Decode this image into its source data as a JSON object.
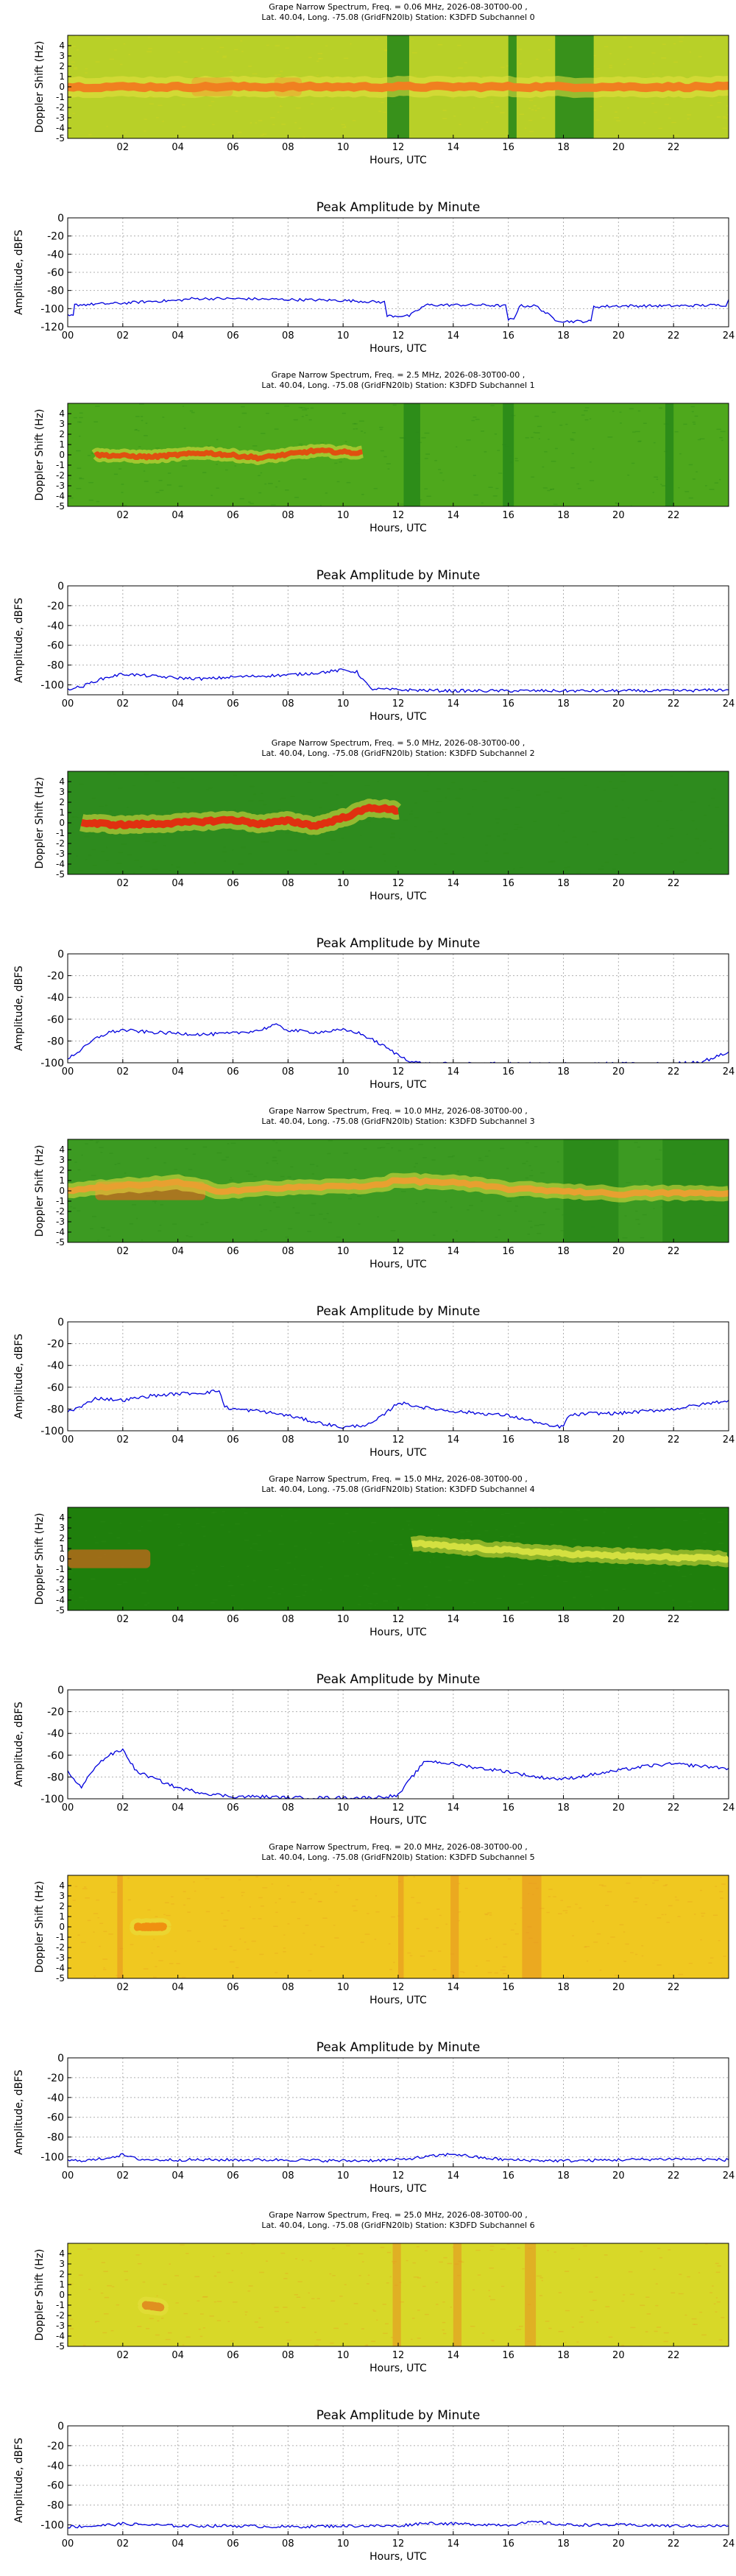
{
  "labels": {
    "spec_ylabel": "Doppler Shift (Hz)",
    "amp_ylabel": "Amplitude, dBFS",
    "xlabel": "Hours, UTC",
    "amp_title": "Peak Amplitude by Minute"
  },
  "spec_yticks": [
    "4",
    "3",
    "2",
    "1",
    "0",
    "-1",
    "-2",
    "-3",
    "-4",
    "-5"
  ],
  "spec_xticks": [
    "02",
    "04",
    "06",
    "08",
    "10",
    "12",
    "14",
    "16",
    "18",
    "20",
    "22"
  ],
  "amp_xticks": [
    "00",
    "02",
    "04",
    "06",
    "08",
    "10",
    "12",
    "14",
    "16",
    "18",
    "20",
    "22",
    "24"
  ],
  "colors": {
    "spec_green": "#2e8b1e",
    "spec_yellow_green": "#aacc22",
    "spec_yellow": "#e8d830",
    "spec_orange": "#f08020",
    "spec_red": "#dd2a10",
    "amp_line": "#0000dd",
    "grid": "#b0b0b0"
  },
  "chart_data": [
    {
      "index": 0,
      "type": "heatmap",
      "title_line1": "Grape Narrow Spectrum, Freq. = 0.06 MHz, 2026-08-30T00-00 ,",
      "title_line2": "Lat.  40.04, Long. -75.08 (GridFN20lb) Station: K3DFD Subchannel 0",
      "xlabel": "Hours, UTC",
      "ylabel": "Doppler Shift (Hz)",
      "xlim": [
        0,
        24
      ],
      "ylim": [
        -5,
        5
      ],
      "background": "#b8d028",
      "bands": [
        [
          11.6,
          12.4
        ],
        [
          16.0,
          16.3
        ],
        [
          17.7,
          19.1
        ]
      ],
      "trace": {
        "freq": [
          [
            0,
            0
          ],
          [
            24,
            0
          ]
        ],
        "color": "#f08020",
        "width_hz": 0.8,
        "hours": [
          0,
          24
        ]
      },
      "hot_zones": [
        [
          4.5,
          6.0
        ],
        [
          7.5,
          8.5
        ]
      ]
    },
    {
      "index": 0,
      "type": "line",
      "title": "Peak Amplitude by Minute",
      "xlabel": "Hours, UTC",
      "ylabel": "Amplitude, dBFS",
      "ylim": [
        -120,
        0
      ],
      "yticks": [
        0,
        -20,
        -40,
        -60,
        -80,
        -100,
        -120
      ],
      "x": [
        0,
        0.2,
        0.25,
        1,
        2,
        3,
        4,
        4.5,
        6,
        8,
        10,
        11.5,
        11.6,
        12.4,
        13,
        14,
        15,
        15.9,
        16.0,
        16.2,
        16.4,
        17,
        17.7,
        18.0,
        19.0,
        19.1,
        20,
        22,
        23.9,
        24
      ],
      "y": [
        -108,
        -108,
        -96,
        -95,
        -94,
        -92,
        -91,
        -89,
        -89,
        -90,
        -91,
        -93,
        -108,
        -108,
        -96,
        -96,
        -96,
        -97,
        -112,
        -112,
        -97,
        -97,
        -112,
        -114,
        -114,
        -98,
        -97,
        -97,
        -96,
        -90
      ]
    },
    {
      "index": 1,
      "type": "heatmap",
      "title_line1": "Grape Narrow Spectrum, Freq. = 2.5 MHz, 2026-08-30T00-00 ,",
      "title_line2": "Lat.  40.04, Long. -75.08 (GridFN20lb) Station: K3DFD Subchannel 1",
      "xlabel": "Hours, UTC",
      "ylabel": "Doppler Shift (Hz)",
      "xlim": [
        0,
        24
      ],
      "ylim": [
        -5,
        5
      ],
      "background": "#4ea81c",
      "bands": [
        [
          12.2,
          12.8
        ],
        [
          15.8,
          16.2
        ],
        [
          21.7,
          22.0
        ]
      ],
      "trace": {
        "freq": [
          [
            1,
            0
          ],
          [
            3,
            -0.2
          ],
          [
            5,
            0.2
          ],
          [
            7,
            -0.3
          ],
          [
            9,
            0.4
          ],
          [
            10.5,
            0.2
          ]
        ],
        "color": "#e05010",
        "width_hz": 0.5,
        "hours": [
          1,
          10.7
        ]
      },
      "hot_zones": []
    },
    {
      "index": 1,
      "type": "line",
      "title": "Peak Amplitude by Minute",
      "xlabel": "Hours, UTC",
      "ylabel": "Amplitude, dBFS",
      "ylim": [
        -110,
        0
      ],
      "yticks": [
        0,
        -20,
        -40,
        -60,
        -80,
        -100
      ],
      "x": [
        0,
        0.5,
        1,
        1.5,
        2,
        3,
        4,
        5,
        6,
        7,
        8,
        9,
        10,
        10.5,
        11,
        12,
        14,
        16,
        18,
        20,
        22,
        24
      ],
      "y": [
        -104,
        -102,
        -96,
        -92,
        -89,
        -91,
        -93,
        -94,
        -92,
        -91,
        -90,
        -88,
        -85,
        -87,
        -104,
        -105,
        -106,
        -106,
        -106,
        -106,
        -106,
        -105
      ]
    },
    {
      "index": 2,
      "type": "heatmap",
      "title_line1": "Grape Narrow Spectrum, Freq. = 5.0 MHz, 2026-08-30T00-00 ,",
      "title_line2": "Lat.  40.04, Long. -75.08 (GridFN20lb) Station: K3DFD Subchannel 2",
      "xlabel": "Hours, UTC",
      "ylabel": "Doppler Shift (Hz)",
      "xlim": [
        0,
        24
      ],
      "ylim": [
        -5,
        5
      ],
      "background": "#2e8b1e",
      "bands": [],
      "trace": {
        "freq": [
          [
            0.5,
            0
          ],
          [
            2,
            -0.2
          ],
          [
            4,
            0
          ],
          [
            6,
            0.3
          ],
          [
            7,
            -0.1
          ],
          [
            8,
            0.2
          ],
          [
            9,
            -0.3
          ],
          [
            10,
            0.5
          ],
          [
            11,
            1.5
          ],
          [
            12,
            1.2
          ]
        ],
        "color": "#e03010",
        "width_hz": 0.7,
        "hours": [
          0.5,
          12
        ]
      },
      "hot_zones": []
    },
    {
      "index": 2,
      "type": "line",
      "title": "Peak Amplitude by Minute",
      "xlabel": "Hours, UTC",
      "ylabel": "Amplitude, dBFS",
      "ylim": [
        -100,
        0
      ],
      "yticks": [
        0,
        -20,
        -40,
        -60,
        -80,
        -100
      ],
      "x": [
        0,
        0.5,
        1,
        1.5,
        2,
        3,
        4,
        5,
        6,
        7,
        7.5,
        8,
        9,
        10,
        10.5,
        11,
        11.5,
        12,
        12.5,
        13,
        14,
        16,
        18,
        20,
        22,
        23,
        23.5,
        24
      ],
      "y": [
        -96,
        -88,
        -78,
        -72,
        -70,
        -72,
        -73,
        -74,
        -73,
        -70,
        -65,
        -70,
        -72,
        -70,
        -72,
        -78,
        -85,
        -93,
        -99,
        -101,
        -101,
        -101,
        -101,
        -101,
        -101,
        -99,
        -95,
        -90
      ]
    },
    {
      "index": 3,
      "type": "heatmap",
      "title_line1": "Grape Narrow Spectrum, Freq. = 10.0 MHz, 2026-08-30T00-00 ,",
      "title_line2": "Lat.  40.04, Long. -75.08 (GridFN20lb) Station: K3DFD Subchannel 3",
      "xlabel": "Hours, UTC",
      "ylabel": "Doppler Shift (Hz)",
      "xlim": [
        0,
        24
      ],
      "ylim": [
        -5,
        5
      ],
      "background": "#3c9a22",
      "bands": [
        [
          18.0,
          20.0
        ],
        [
          21.6,
          24.0
        ]
      ],
      "trace": {
        "freq": [
          [
            0,
            0
          ],
          [
            2,
            0.5
          ],
          [
            4,
            0.8
          ],
          [
            5.5,
            0
          ],
          [
            8,
            0.3
          ],
          [
            11,
            0.5
          ],
          [
            12,
            1.0
          ],
          [
            14,
            0.8
          ],
          [
            16,
            0.2
          ],
          [
            18,
            0
          ],
          [
            20,
            -0.3
          ],
          [
            22,
            -0.2
          ],
          [
            24,
            -0.3
          ]
        ],
        "color": "#e8a030",
        "width_hz": 0.6,
        "hours": [
          0,
          24
        ]
      },
      "hot_zones": [
        [
          1,
          5
        ]
      ]
    },
    {
      "index": 3,
      "type": "line",
      "title": "Peak Amplitude by Minute",
      "xlabel": "Hours, UTC",
      "ylabel": "Amplitude, dBFS",
      "ylim": [
        -100,
        0
      ],
      "yticks": [
        0,
        -20,
        -40,
        -60,
        -80,
        -100
      ],
      "x": [
        0,
        0.5,
        1,
        2,
        3,
        4,
        5,
        5.5,
        5.7,
        6,
        7,
        8,
        9,
        10,
        11,
        11.5,
        12,
        13,
        14,
        15,
        16,
        17,
        17.5,
        18,
        18.2,
        19,
        20,
        21,
        22,
        23,
        24
      ],
      "y": [
        -82,
        -78,
        -70,
        -72,
        -68,
        -66,
        -65,
        -63,
        -78,
        -80,
        -82,
        -86,
        -92,
        -97,
        -94,
        -85,
        -74,
        -79,
        -82,
        -84,
        -86,
        -92,
        -96,
        -96,
        -86,
        -84,
        -84,
        -82,
        -80,
        -76,
        -72
      ]
    },
    {
      "index": 4,
      "type": "heatmap",
      "title_line1": "Grape Narrow Spectrum, Freq. = 15.0 MHz, 2026-08-30T00-00 ,",
      "title_line2": "Lat.  40.04, Long. -75.08 (GridFN20lb) Station: K3DFD Subchannel 4",
      "xlabel": "Hours, UTC",
      "ylabel": "Doppler Shift (Hz)",
      "xlim": [
        0,
        24
      ],
      "ylim": [
        -5,
        5
      ],
      "background": "#1f7f0c",
      "bands": [],
      "trace": {
        "freq": [
          [
            12.5,
            1.5
          ],
          [
            15,
            1.0
          ],
          [
            18,
            0.5
          ],
          [
            21,
            0.2
          ],
          [
            24,
            0
          ]
        ],
        "color": "#d4e040",
        "width_hz": 0.6,
        "hours": [
          12.5,
          24
        ]
      },
      "hot_zones": [
        [
          0,
          3
        ]
      ]
    },
    {
      "index": 4,
      "type": "line",
      "title": "Peak Amplitude by Minute",
      "xlabel": "Hours, UTC",
      "ylabel": "Amplitude, dBFS",
      "ylim": [
        -100,
        0
      ],
      "yticks": [
        0,
        -20,
        -40,
        -60,
        -80,
        -100
      ],
      "x": [
        0,
        0.5,
        1,
        1.5,
        2,
        2.5,
        3,
        4,
        5,
        6,
        7,
        8,
        9,
        10,
        11,
        12,
        12.5,
        13,
        14,
        15,
        16,
        17,
        18,
        19,
        20,
        21,
        22,
        23,
        24
      ],
      "y": [
        -75,
        -90,
        -70,
        -60,
        -55,
        -75,
        -80,
        -90,
        -95,
        -98,
        -98,
        -99,
        -99,
        -99,
        -99,
        -97,
        -80,
        -65,
        -68,
        -72,
        -75,
        -80,
        -82,
        -78,
        -74,
        -70,
        -68,
        -70,
        -72
      ]
    },
    {
      "index": 5,
      "type": "heatmap",
      "title_line1": "Grape Narrow Spectrum, Freq. = 20.0 MHz, 2026-08-30T00-00 ,",
      "title_line2": "Lat.  40.04, Long. -75.08 (GridFN20lb) Station: K3DFD Subchannel 5",
      "xlabel": "Hours, UTC",
      "ylabel": "Doppler Shift (Hz)",
      "xlim": [
        0,
        24
      ],
      "ylim": [
        -5,
        5
      ],
      "background": "#f0c820",
      "bands": [
        [
          1.8,
          2.0
        ],
        [
          12.0,
          12.2
        ],
        [
          13.9,
          14.2
        ],
        [
          16.5,
          17.2
        ]
      ],
      "trace": {
        "freq": [
          [
            2.5,
            0
          ],
          [
            3.5,
            0
          ]
        ],
        "color": "#f09010",
        "width_hz": 0.6,
        "hours": [
          2.5,
          3.5
        ]
      },
      "hot_zones": []
    },
    {
      "index": 5,
      "type": "line",
      "title": "Peak Amplitude by Minute",
      "xlabel": "Hours, UTC",
      "ylabel": "Amplitude, dBFS",
      "ylim": [
        -110,
        0
      ],
      "yticks": [
        0,
        -20,
        -40,
        -60,
        -80,
        -100
      ],
      "x": [
        0,
        1,
        2,
        2.5,
        3,
        4,
        6,
        8,
        10,
        12,
        14,
        15,
        16,
        18,
        20,
        22,
        24
      ],
      "y": [
        -104,
        -103,
        -98,
        -102,
        -103,
        -103,
        -103,
        -103,
        -104,
        -103,
        -97,
        -101,
        -103,
        -104,
        -103,
        -102,
        -103
      ]
    },
    {
      "index": 6,
      "type": "heatmap",
      "title_line1": "Grape Narrow Spectrum, Freq. = 25.0 MHz, 2026-08-30T00-00 ,",
      "title_line2": "Lat.  40.04, Long. -75.08 (GridFN20lb) Station: K3DFD Subchannel 6",
      "xlabel": "Hours, UTC",
      "ylabel": "Doppler Shift (Hz)",
      "xlim": [
        0,
        24
      ],
      "ylim": [
        -5,
        5
      ],
      "background": "#d8d828",
      "bands": [
        [
          11.8,
          12.1
        ],
        [
          14.0,
          14.3
        ],
        [
          16.6,
          17.0
        ]
      ],
      "trace": {
        "freq": [
          [
            2.8,
            -1.0
          ],
          [
            3.4,
            -1.2
          ]
        ],
        "color": "#e09020",
        "width_hz": 0.6,
        "hours": [
          2.8,
          3.4
        ]
      },
      "hot_zones": []
    },
    {
      "index": 6,
      "type": "line",
      "title": "Peak Amplitude by Minute",
      "xlabel": "Hours, UTC",
      "ylabel": "Amplitude, dBFS",
      "ylim": [
        -110,
        0
      ],
      "yticks": [
        0,
        -20,
        -40,
        -60,
        -80,
        -100
      ],
      "x": [
        0,
        1,
        2,
        3,
        4,
        6,
        8,
        10,
        12,
        13,
        14,
        16,
        17,
        18,
        20,
        22,
        24
      ],
      "y": [
        -102,
        -101,
        -99,
        -100,
        -101,
        -101,
        -102,
        -101,
        -101,
        -98,
        -99,
        -100,
        -97,
        -100,
        -100,
        -101,
        -101
      ]
    }
  ]
}
